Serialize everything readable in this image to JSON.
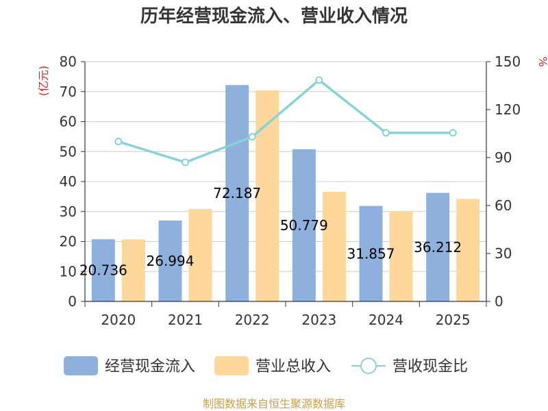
{
  "chart_data": {
    "type": "bar",
    "title": "历年经营现金流入、营业收入情况",
    "categories": [
      "2020",
      "2021",
      "2022",
      "2023",
      "2024",
      "2025"
    ],
    "series": [
      {
        "name": "经营现金流入",
        "kind": "bar",
        "axis": "left",
        "color": "#8eb0dc",
        "values": [
          20.736,
          26.994,
          72.187,
          50.779,
          31.857,
          36.212
        ],
        "data_labels": [
          "20.736",
          "26.994",
          "72.187",
          "50.779",
          "31.857",
          "36.212"
        ]
      },
      {
        "name": "营业总收入",
        "kind": "bar",
        "axis": "left",
        "color": "#fdd89a",
        "values": [
          20.7,
          30.9,
          70.4,
          36.6,
          30.1,
          34.2
        ]
      },
      {
        "name": "营收现金比",
        "kind": "line",
        "axis": "right",
        "color": "#86d3d9",
        "values": [
          100,
          87,
          103,
          138.5,
          105.5,
          105.5
        ]
      }
    ],
    "y_left": {
      "label": "(亿元)",
      "range": [
        0,
        80
      ],
      "ticks": [
        "0",
        "10",
        "20",
        "30",
        "40",
        "50",
        "60",
        "70",
        "80"
      ]
    },
    "y_right": {
      "label": "%",
      "range": [
        0,
        150
      ],
      "ticks": [
        "0",
        "30",
        "60",
        "90",
        "120",
        "150"
      ]
    },
    "grid": true,
    "legend_position": "bottom",
    "unit_color": "#e02020"
  },
  "source_text": "制图数据来自恒生聚源数据库",
  "source_color": "#c8a048"
}
